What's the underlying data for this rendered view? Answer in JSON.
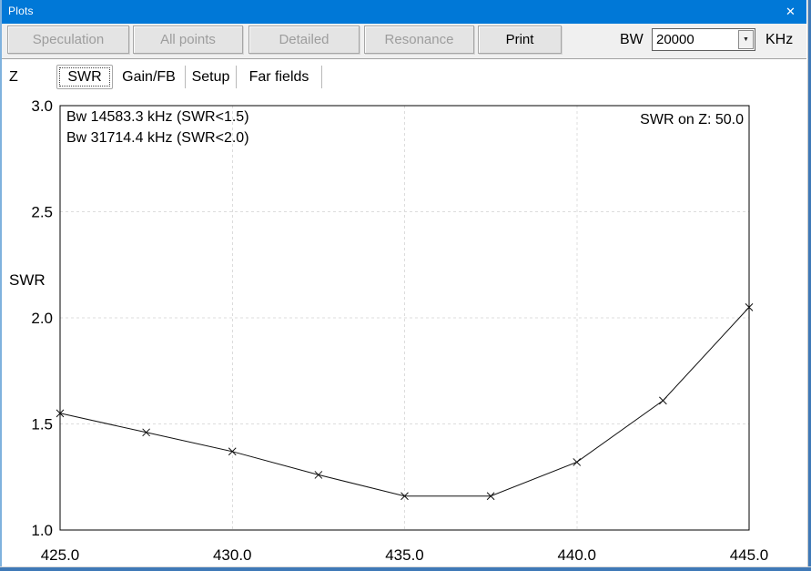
{
  "window": {
    "title": "Plots"
  },
  "icons": {
    "close": "✕",
    "dropdown": "▼"
  },
  "toolbar": {
    "buttons": [
      {
        "label": "Speculation",
        "enabled": false
      },
      {
        "label": "All points",
        "enabled": false
      },
      {
        "label": "Detailed",
        "enabled": false
      },
      {
        "label": "Resonance",
        "enabled": false
      },
      {
        "label": "Print",
        "enabled": true
      }
    ],
    "bw": {
      "label": "BW",
      "value": "20000",
      "unit": "KHz"
    }
  },
  "tabs": {
    "items": [
      {
        "label": "Z",
        "selected": false
      },
      {
        "label": "SWR",
        "selected": true
      },
      {
        "label": "Gain/FB",
        "selected": false
      },
      {
        "label": "Setup",
        "selected": false
      },
      {
        "label": "Far fields",
        "selected": false
      }
    ]
  },
  "chart_data": {
    "type": "line",
    "title": "",
    "xlabel": "",
    "ylabel": "SWR",
    "x": [
      425.0,
      427.5,
      430.0,
      432.5,
      435.0,
      437.5,
      440.0,
      442.5,
      445.0
    ],
    "series": [
      {
        "name": "SWR",
        "marker": "x",
        "values": [
          1.55,
          1.46,
          1.37,
          1.26,
          1.16,
          1.16,
          1.32,
          1.61,
          2.05
        ]
      }
    ],
    "xlim": [
      425.0,
      445.0
    ],
    "ylim": [
      1.0,
      3.0
    ],
    "xticks": [
      425.0,
      430.0,
      435.0,
      440.0,
      445.0
    ],
    "xtick_labels": [
      "425.0",
      "430.0",
      "435.0",
      "440.0",
      "445.0"
    ],
    "yticks": [
      3.0,
      2.5,
      2.0,
      1.5,
      1.0
    ],
    "ytick_labels": [
      "3.0",
      "2.5",
      "2.0",
      "1.5",
      "1.0"
    ],
    "grid": {
      "style": "dashed",
      "interior_only": true
    },
    "legend": "none",
    "annotations": [
      {
        "text": "Bw 14583.3 kHz (SWR<1.5)",
        "position": "top-left"
      },
      {
        "text": "Bw 31714.4 kHz (SWR<2.0)",
        "position": "top-left"
      },
      {
        "text": "SWR on Z: 50.0",
        "position": "top-right"
      }
    ]
  },
  "colors": {
    "titlebar": "#0078d7",
    "window_border": "#3f79b7",
    "toolbar_bg": "#f0f0f0",
    "button_bg": "#e4e4e4",
    "button_border": "#a6a6a6",
    "disabled_text": "#9d9d9d",
    "grid": "#dcdcdc",
    "line": "#111111"
  }
}
